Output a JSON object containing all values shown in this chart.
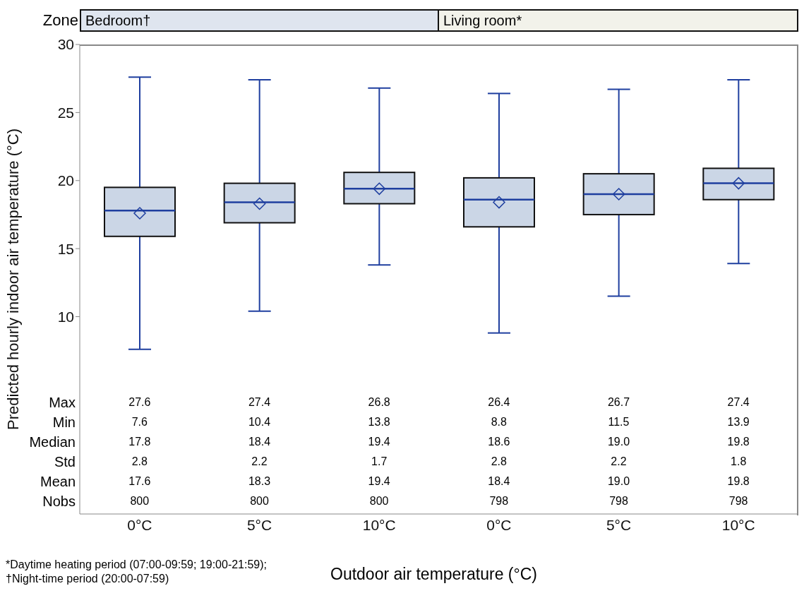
{
  "chart_data": {
    "type": "box",
    "ylabel": "Predicted  hourly indoor air  temperature  (°C)",
    "xlabel": "Outdoor air temperature  (°C)",
    "categories": [
      "0°C",
      "5°C",
      "10°C",
      "0°C",
      "5°C",
      "10°C"
    ],
    "color": "#cbd6e6",
    "boxes": [
      {
        "low": 7.6,
        "q1": 15.9,
        "median": 17.8,
        "q3": 19.5,
        "high": 27.6,
        "mean": 17.6
      },
      {
        "low": 10.4,
        "q1": 16.9,
        "median": 18.4,
        "q3": 19.8,
        "high": 27.4,
        "mean": 18.3
      },
      {
        "low": 13.8,
        "q1": 18.3,
        "median": 19.4,
        "q3": 20.6,
        "high": 26.8,
        "mean": 19.4
      },
      {
        "low": 8.8,
        "q1": 16.6,
        "median": 18.6,
        "q3": 20.2,
        "high": 26.4,
        "mean": 18.4
      },
      {
        "low": 11.5,
        "q1": 17.5,
        "median": 19.0,
        "q3": 20.5,
        "high": 26.7,
        "mean": 19.0
      },
      {
        "low": 13.9,
        "q1": 18.6,
        "median": 19.8,
        "q3": 20.9,
        "high": 27.4,
        "mean": 19.8
      }
    ],
    "ylim": [
      -4.5,
      30
    ],
    "yticks": [
      10,
      15,
      20,
      25,
      30
    ],
    "annotations": [
      "Zone",
      "Bedroom†",
      "Living room*",
      "Max",
      "Min",
      "Median",
      "Std",
      "Mean",
      "Nobs",
      "27.6",
      "27.4",
      "26.8",
      "26.4",
      "26.7",
      "27.4",
      "7.6",
      "10.4",
      "13.8",
      "8.8",
      "11.5",
      "13.9",
      "17.8",
      "18.4",
      "19.4",
      "18.6",
      "19.0",
      "19.8",
      "2.8",
      "2.2",
      "1.7",
      "2.8",
      "2.2",
      "1.8",
      "17.6",
      "18.3",
      "19.4",
      "18.4",
      "19.0",
      "19.8",
      "800",
      "800",
      "800",
      "798",
      "798",
      "798",
      "*Daytime heating period (07:00-09:59; 19:00-21:59);",
      "†Night-time period (20:00-07:59)"
    ]
  }
}
